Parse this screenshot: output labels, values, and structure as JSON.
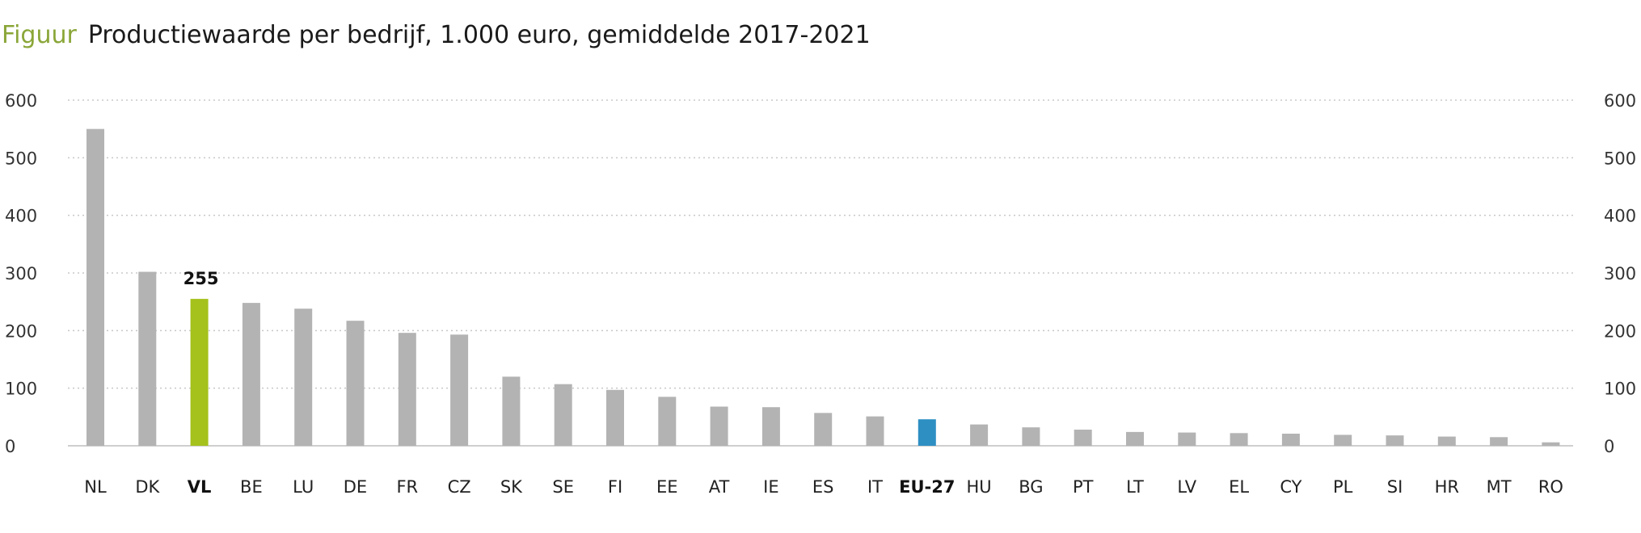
{
  "figure": {
    "label": "Figuur",
    "title": "Productiewaarde per bedrijf, 1.000 euro, gemiddelde 2017-2021"
  },
  "colors": {
    "default_bar": "#b3b3b3",
    "highlight_vl": "#a4c11c",
    "highlight_eu": "#2e8fc3",
    "gridline": "#c8c8c8",
    "axis": "#cfcfcf"
  },
  "chart_data": {
    "type": "bar",
    "title": "Productiewaarde per bedrijf, 1.000 euro, gemiddelde 2017-2021",
    "xlabel": "",
    "ylabel": "",
    "ylim": [
      0,
      600
    ],
    "yticks": [
      0,
      100,
      200,
      300,
      400,
      500,
      600
    ],
    "secondary_y_axis": true,
    "grid": true,
    "categories": [
      "NL",
      "DK",
      "VL",
      "BE",
      "LU",
      "DE",
      "FR",
      "CZ",
      "SK",
      "SE",
      "FI",
      "EE",
      "AT",
      "IE",
      "ES",
      "IT",
      "EU-27",
      "HU",
      "BG",
      "PT",
      "LT",
      "LV",
      "EL",
      "CY",
      "PL",
      "SI",
      "HR",
      "MT",
      "RO"
    ],
    "values": [
      550,
      302,
      255,
      248,
      238,
      217,
      196,
      193,
      120,
      107,
      97,
      85,
      68,
      67,
      57,
      51,
      46,
      37,
      32,
      28,
      24,
      23,
      22,
      21,
      19,
      18,
      16,
      15,
      6
    ],
    "highlighted": {
      "VL": "highlight_vl",
      "EU-27": "highlight_eu"
    },
    "bold_categories": [
      "VL",
      "EU-27"
    ],
    "data_labels": [
      {
        "category": "VL",
        "text": "255"
      }
    ]
  }
}
